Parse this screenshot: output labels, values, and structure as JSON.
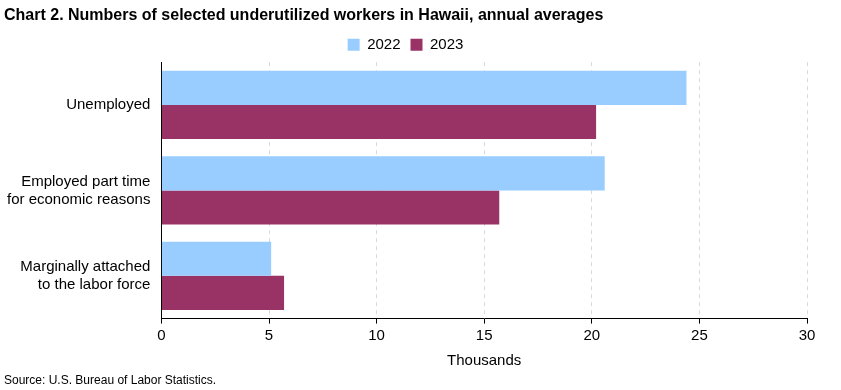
{
  "chart_data": {
    "type": "bar",
    "orientation": "horizontal",
    "title": "Chart 2. Numbers of selected underutilized workers in Hawaii, annual averages",
    "source": "Source: U.S. Bureau of Labor Statistics.",
    "x_label": "Thousands",
    "categories": [
      "Unemployed",
      "Employed part time\nfor economic reasons",
      "Marginally attached\nto the labor force"
    ],
    "series": [
      {
        "name": "2022",
        "color": "#99ccff",
        "values": [
          24.4,
          20.6,
          5.1
        ]
      },
      {
        "name": "2023",
        "color": "#993366",
        "values": [
          20.2,
          15.7,
          5.7
        ]
      }
    ],
    "xlim": [
      0,
      30
    ],
    "xticks": [
      0,
      5,
      10,
      15,
      20,
      25,
      30
    ],
    "grid": true,
    "legend": "top"
  }
}
